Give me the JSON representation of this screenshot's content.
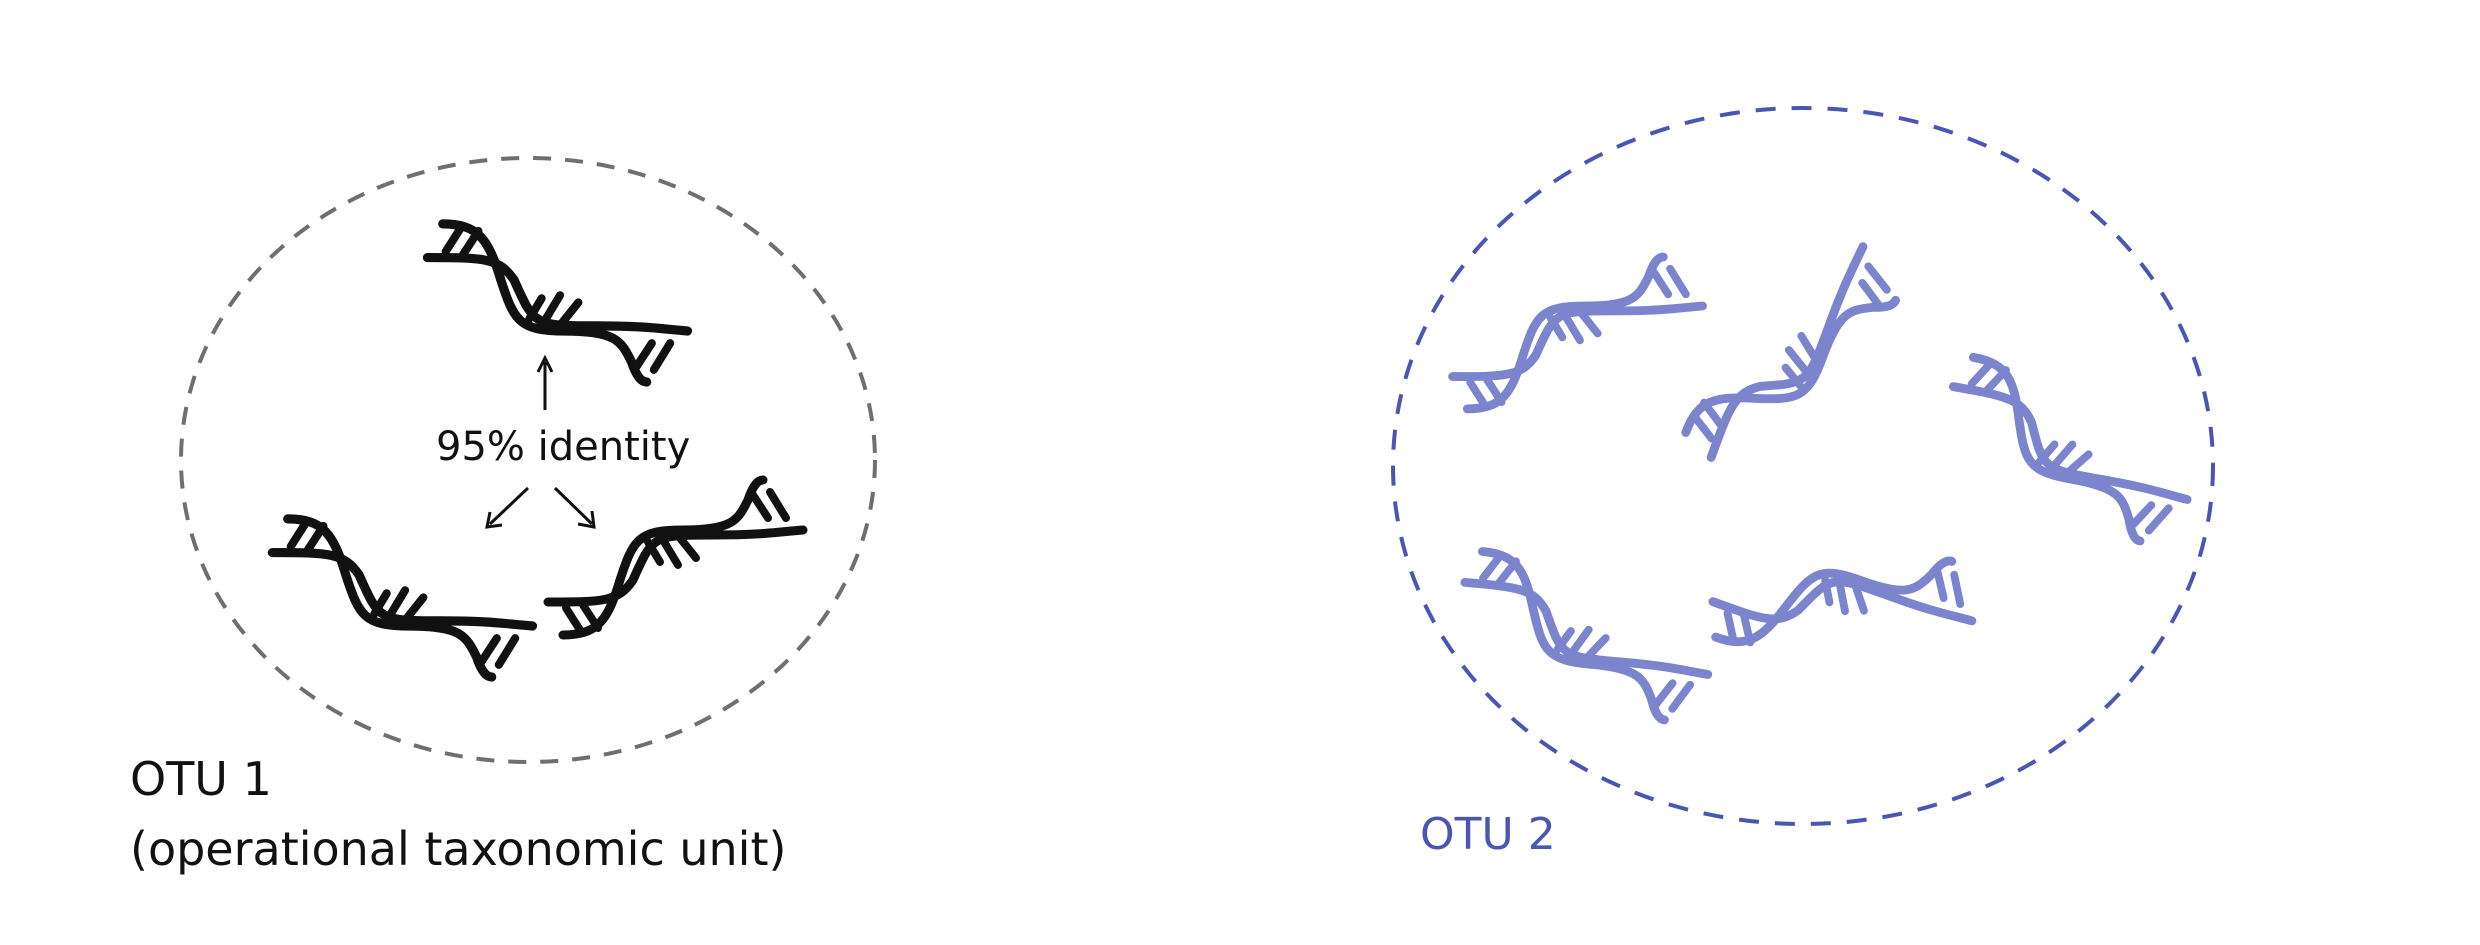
{
  "otu1": {
    "title": "OTU 1",
    "subtitle": "(operational taxonomic unit)",
    "identity_label": "95% identity",
    "color": "#111111",
    "border_color": "#6f6f6f"
  },
  "otu2": {
    "title": "OTU 2",
    "color": "#7b84cc",
    "label_color": "#4a55b5",
    "border_color": "#4a55b5"
  }
}
